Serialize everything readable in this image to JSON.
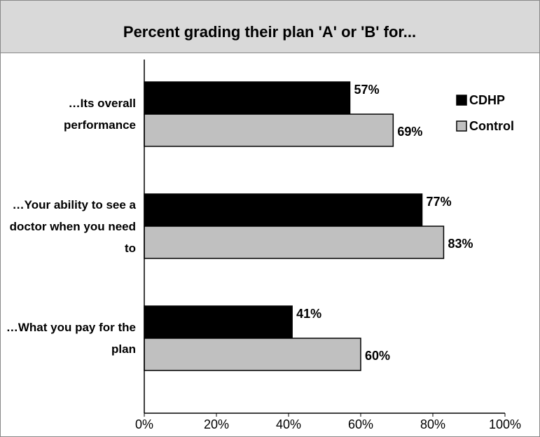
{
  "chart_data": {
    "type": "bar",
    "orientation": "horizontal",
    "title": "Percent grading their plan 'A' or 'B' for...",
    "categories": [
      "…Its overall performance",
      "…Your ability to see a doctor when you need to",
      "…What you pay for the plan"
    ],
    "series": [
      {
        "name": "CDHP",
        "color": "#000000",
        "values": [
          57,
          77,
          41
        ],
        "value_labels": [
          "57%",
          "77%",
          "41%"
        ]
      },
      {
        "name": "Control",
        "color": "#c0c0c0",
        "values": [
          69,
          83,
          60
        ],
        "value_labels": [
          "69%",
          "83%",
          "60%"
        ]
      }
    ],
    "xlim": [
      0,
      100
    ],
    "xticks": [
      {
        "value": 0,
        "label": "0%"
      },
      {
        "value": 20,
        "label": "20%"
      },
      {
        "value": 40,
        "label": "40%"
      },
      {
        "value": 60,
        "label": "60%"
      },
      {
        "value": 80,
        "label": "80%"
      },
      {
        "value": 100,
        "label": "100%"
      }
    ],
    "legend": "upper right"
  }
}
